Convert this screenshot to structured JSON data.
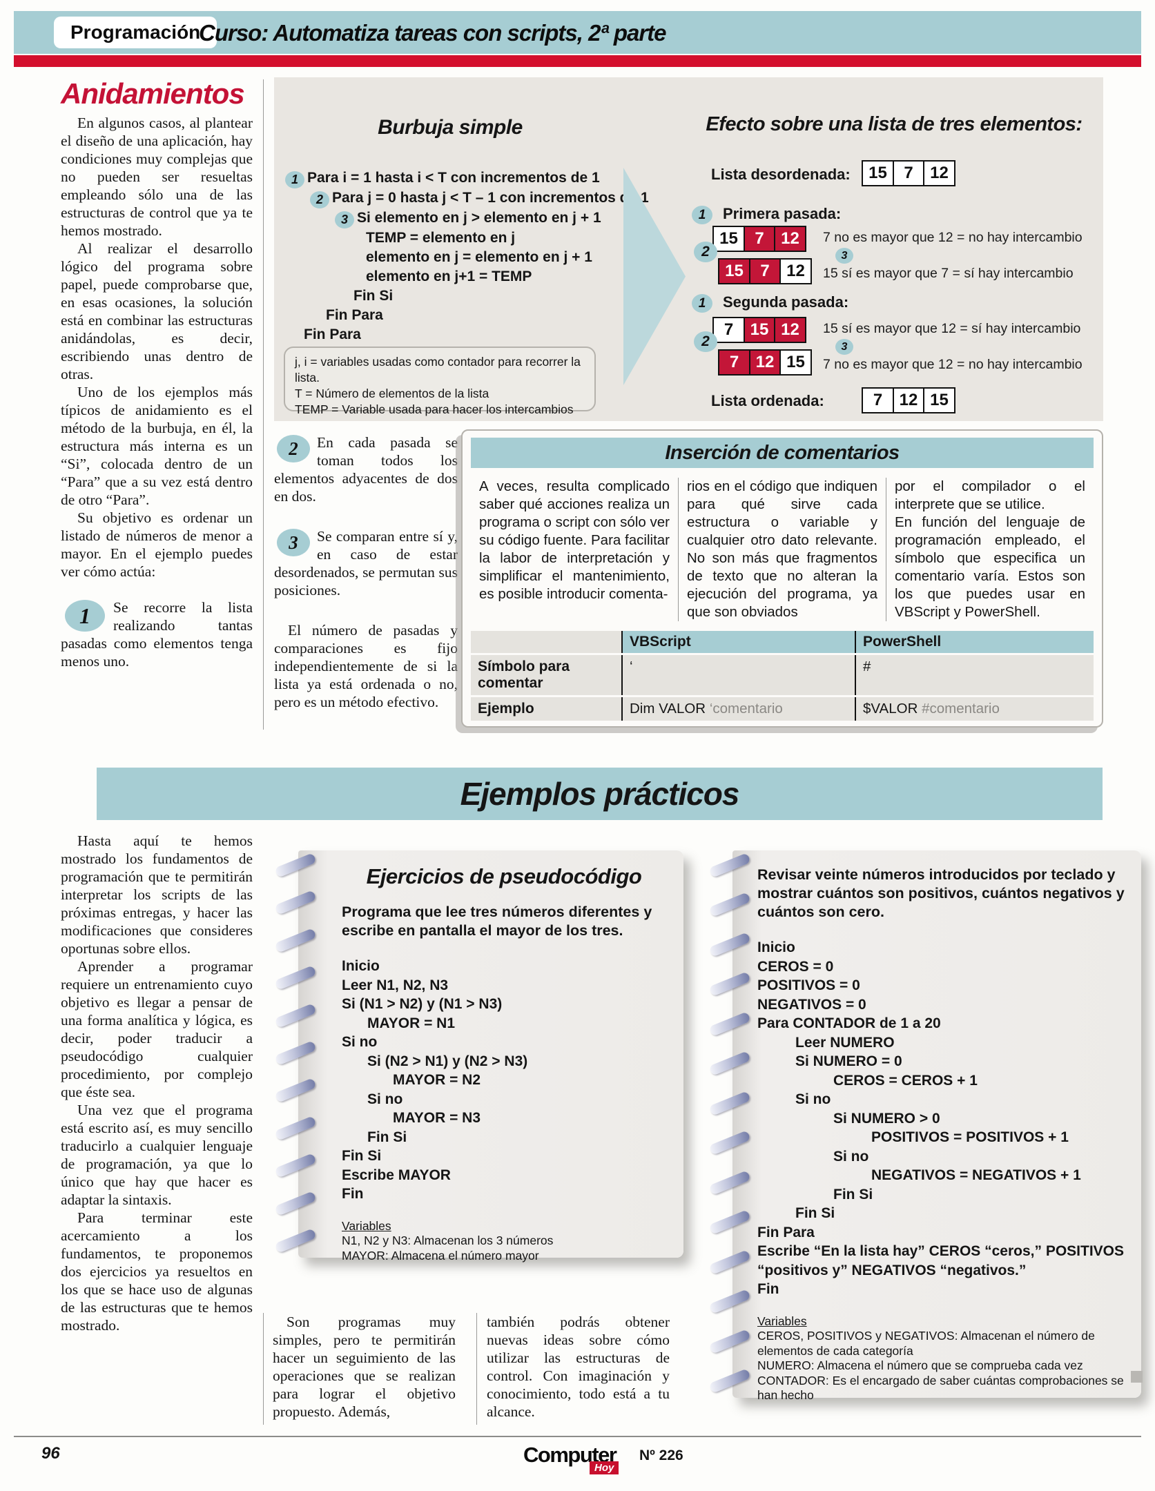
{
  "colors": {
    "teal": "#a6cdd3",
    "stripe_red": "#d30f2d",
    "heading_red": "#c41236",
    "cell_red": "#c31638",
    "hoy_red": "#c8102e"
  },
  "header": {
    "category": "Programación",
    "title": "Curso: Automatiza tareas con scripts, 2ª parte"
  },
  "article_top": {
    "heading": "Anidamientos",
    "paragraphs": [
      "En algunos casos, al plantear el diseño de una aplicación, hay condiciones muy complejas que no pueden ser resueltas empleando sólo una de las estructuras de control que ya te hemos mostrado.",
      "Al realizar el desarrollo lógico del programa sobre papel, puede comprobarse que, en esas ocasiones, la solución está en combinar las estructuras anidándolas, es decir, escribiendo unas dentro de otras.",
      "Uno de los ejemplos más típicos de anidamiento es el método de la burbuja, en él, la estructura más interna es un “Si”, colocada dentro de un “Para” que a su vez está dentro de otro “Para”.",
      "Su objetivo es ordenar un listado de números de menor a mayor. En el ejemplo puedes ver cómo actúa:"
    ],
    "step": {
      "num": "1",
      "text": "Se recorre la lista realizando tantas pasadas como elementos tenga menos uno."
    }
  },
  "burbuja": {
    "title": "Burbuja simple",
    "code": [
      {
        "num": "1",
        "level": 0,
        "text": "Para i = 1 hasta i < T con incrementos de 1"
      },
      {
        "num": "2",
        "level": 1,
        "text": "Para j = 0 hasta j < T – 1 con incrementos de 1"
      },
      {
        "num": "3",
        "level": 2,
        "text": "Si elemento en j > elemento en j + 1"
      },
      {
        "level": 3,
        "text": "TEMP = elemento en j"
      },
      {
        "level": 3,
        "text": "elemento en j = elemento en j + 1"
      },
      {
        "level": 3,
        "text": "elemento en j+1 = TEMP"
      },
      {
        "level": "c2",
        "text": "Fin Si"
      },
      {
        "level": "c1",
        "text": "Fin Para"
      },
      {
        "level": "c0",
        "text": "Fin Para"
      }
    ],
    "notes": [
      "j, i = variables usadas como contador para recorrer la lista.",
      "T = Número de elementos de la lista",
      "TEMP = Variable usada para hacer los intercambios"
    ]
  },
  "efecto": {
    "title": "Efecto sobre una lista de tres elementos:",
    "unsorted_label": "Lista desordenada:",
    "unsorted": [
      {
        "v": "15"
      },
      {
        "v": "7"
      },
      {
        "v": "12"
      }
    ],
    "passes": [
      {
        "num": "1",
        "label": "Primera pasada:",
        "side_num": "2",
        "mid_num": "3",
        "rows": [
          {
            "cells": [
              {
                "v": "15"
              },
              {
                "v": "7",
                "red": true
              },
              {
                "v": "12",
                "red": true
              }
            ],
            "note": "7 no es mayor que 12 = no hay intercambio"
          },
          {
            "cells": [
              {
                "v": "15",
                "red": true
              },
              {
                "v": "7",
                "red": true
              },
              {
                "v": "12"
              }
            ],
            "note": "15 sí es mayor que 7 = sí hay intercambio"
          }
        ]
      },
      {
        "num": "1",
        "label": "Segunda pasada:",
        "side_num": "2",
        "mid_num": "3",
        "rows": [
          {
            "cells": [
              {
                "v": "7"
              },
              {
                "v": "15",
                "red": true
              },
              {
                "v": "12",
                "red": true
              }
            ],
            "note": "15 sí es mayor que 12 = sí hay intercambio"
          },
          {
            "cells": [
              {
                "v": "7",
                "red": true
              },
              {
                "v": "12",
                "red": true
              },
              {
                "v": "15"
              }
            ],
            "note": "7 no es mayor que 12 = no hay intercambio"
          }
        ]
      }
    ],
    "sorted_label": "Lista ordenada:",
    "sorted": [
      {
        "v": "7"
      },
      {
        "v": "12"
      },
      {
        "v": "15"
      }
    ]
  },
  "steps": {
    "items": [
      {
        "num": "2",
        "text": "En cada pasada se toman todos los elementos adyacentes de dos en dos."
      },
      {
        "num": "3",
        "text": "Se comparan entre sí y, en caso de estar desordenados, se permutan sus posiciones."
      }
    ],
    "extra": "El número de pasadas y comparaciones es fijo independientemente de si la lista ya está ordenada o no, pero es un método efectivo."
  },
  "comentarios": {
    "title": "Inserción de comentarios",
    "columns": [
      [
        "A veces, resulta complicado saber qué acciones realiza un programa o script con sólo ver su código fuente. Para facilitar la labor de interpretación y simplificar el mantenimiento, es posible introducir comenta-"
      ],
      [
        "rios en el código que indiquen para qué sirve cada estructura o variable y cualquier otro dato relevante. No son más que fragmentos de texto que no alteran la ejecución del programa, ya que son obviados"
      ],
      [
        "por el compilador o el interprete que se utilice.",
        "En función del lenguaje de programación empleado, el símbolo que especifica un comentario varía. Estos son los que puedes usar en VBScript y PowerShell."
      ]
    ],
    "table": {
      "col_headers": [
        "VBScript",
        "PowerShell"
      ],
      "rows": [
        {
          "label": "Símbolo para comentar",
          "vb": [
            {
              "t": "‘"
            }
          ],
          "ps": [
            {
              "t": "#"
            }
          ]
        },
        {
          "label": "Ejemplo",
          "vb": [
            {
              "t": "Dim VALOR "
            },
            {
              "t": "‘comentario",
              "muted": true
            }
          ],
          "ps": [
            {
              "t": "$VALOR "
            },
            {
              "t": "#comentario",
              "muted": true
            }
          ]
        }
      ]
    }
  },
  "banner": {
    "title": "Ejemplos prácticos"
  },
  "article_bottom": {
    "paragraphs": [
      "Hasta aquí te hemos mostrado los fundamentos de programación que te permitirán interpretar los scripts de las próximas entregas, y hacer las modificaciones que consideres oportunas sobre ellos.",
      "Aprender a programar requiere un entrenamiento cuyo objetivo es llegar a pensar de una forma analítica y lógica, es decir, poder traducir a pseudocódigo cualquier procedimiento, por complejo que éste sea.",
      "Una vez que el programa está escrito así, es muy sencillo traducirlo a cualquier lenguaje de programación, ya que lo único que hay que hacer es adaptar la sintaxis.",
      "Para terminar este acercamiento a los fundamentos, te proponemos dos ejercicios ya resueltos en los que se hace uso de algunas de las estructuras que te hemos mostrado."
    ]
  },
  "notebooks": [
    {
      "title": "Ejercicios de pseudocódigo",
      "intro": "Programa que lee tres números diferentes y escribe en pantalla el mayor de los tres.",
      "code": [
        {
          "l": 0,
          "t": "Inicio"
        },
        {
          "l": 0,
          "t": "Leer N1, N2, N3"
        },
        {
          "l": 0,
          "t": "Si (N1 > N2) y (N1 > N3)"
        },
        {
          "l": 1,
          "t": "MAYOR = N1"
        },
        {
          "l": 0,
          "t": "Si no"
        },
        {
          "l": 1,
          "t": "Si (N2 > N1) y (N2 > N3)"
        },
        {
          "l": 2,
          "t": "MAYOR = N2"
        },
        {
          "l": 1,
          "t": "Si no"
        },
        {
          "l": 2,
          "t": "MAYOR = N3"
        },
        {
          "l": 1,
          "t": "Fin Si"
        },
        {
          "l": 0,
          "t": "Fin Si"
        },
        {
          "l": 0,
          "t": "Escribe MAYOR"
        },
        {
          "l": 0,
          "t": "Fin"
        }
      ],
      "vars_title": "Variables",
      "vars": [
        "N1, N2 y N3: Almacenan los 3 números",
        "MAYOR: Almacena el número mayor"
      ]
    },
    {
      "title": "",
      "intro": "Revisar veinte números introducidos por teclado y mostrar cuántos son positivos, cuántos negativos y cuántos son cero.",
      "code": [
        {
          "l": 0,
          "t": "Inicio"
        },
        {
          "l": 0,
          "t": "CEROS = 0"
        },
        {
          "l": 0,
          "t": "POSITIVOS = 0"
        },
        {
          "l": 0,
          "t": "NEGATIVOS = 0"
        },
        {
          "l": 0,
          "t": "Para CONTADOR de 1 a 20"
        },
        {
          "l": 1,
          "t": "Leer NUMERO"
        },
        {
          "l": 1,
          "t": "Si NUMERO = 0"
        },
        {
          "l": 2,
          "t": "CEROS = CEROS + 1"
        },
        {
          "l": 1,
          "t": "Si no"
        },
        {
          "l": 2,
          "t": "Si NUMERO > 0"
        },
        {
          "l": 3,
          "t": "POSITIVOS = POSITIVOS + 1"
        },
        {
          "l": 2,
          "t": "Si no"
        },
        {
          "l": 3,
          "t": "NEGATIVOS = NEGATIVOS + 1"
        },
        {
          "l": 2,
          "t": "Fin Si"
        },
        {
          "l": 1,
          "t": "Fin Si"
        },
        {
          "l": 0,
          "t": "Fin Para"
        },
        {
          "l": 0,
          "t": "Escribe “En la lista hay” CEROS “ceros,” POSITIVOS “positivos y” NEGATIVOS “negativos.”"
        },
        {
          "l": 0,
          "t": "Fin"
        }
      ],
      "vars_title": "Variables",
      "vars": [
        "CEROS, POSITIVOS y NEGATIVOS: Almacenan el número de elementos de cada categoría",
        "NUMERO: Almacena el número que se comprueba cada vez",
        "CONTADOR: Es el encargado de saber cuántas comprobaciones se han hecho"
      ]
    }
  ],
  "closing_columns": [
    "Son programas muy simples, pero te permitirán hacer un seguimiento de las operaciones que se realizan para lograr el objetivo propuesto. Además,",
    "también podrás obtener nuevas ideas sobre cómo utilizar las estructuras de control. Con imaginación y conocimiento, todo está a tu alcance."
  ],
  "footer": {
    "page": "96",
    "logo_top": "Computer",
    "logo_badge": "Hoy",
    "issue": "Nº 226"
  }
}
